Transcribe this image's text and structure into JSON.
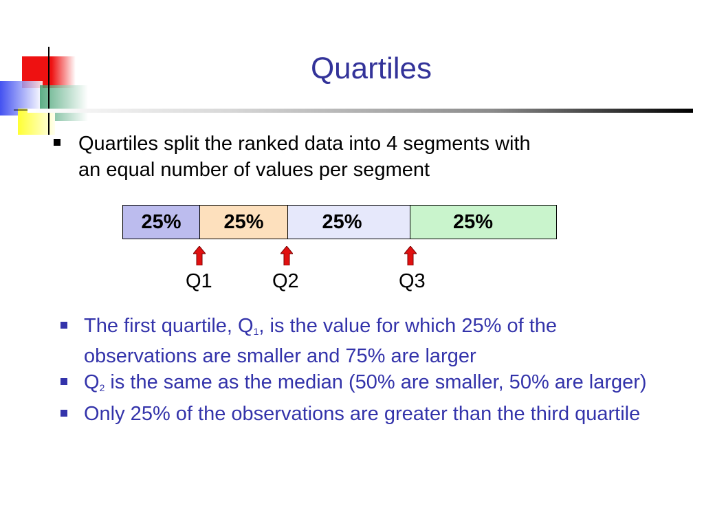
{
  "title": "Quartiles",
  "intro_bullet": {
    "line1": "Quartiles split the ranked data into 4 segments with",
    "line2": "an equal number of values per segment"
  },
  "segments": [
    {
      "label": "25%",
      "color": "#bcbcee"
    },
    {
      "label": "25%",
      "color": "#fde0bd"
    },
    {
      "label": "25%",
      "color": "#e6e8fb"
    },
    {
      "label": "25%",
      "color": "#c9f4cc"
    }
  ],
  "markers": [
    {
      "label": "Q1"
    },
    {
      "label": "Q2"
    },
    {
      "label": "Q3"
    }
  ],
  "bullets": [
    {
      "part1": "The first quartile, Q",
      "subscript": "1",
      "part2": ", is the value for which 25% of the observations are smaller and 75% are larger"
    },
    {
      "part1": "Q",
      "subscript": "2",
      "part2": " is the same as the median (50% are smaller, 50% are larger)"
    },
    {
      "text": "Only 25% of the observations are greater than the third quartile"
    }
  ],
  "colors": {
    "title": "#333399",
    "bullet_text": "#3333aa",
    "arrow": "#e01010"
  }
}
